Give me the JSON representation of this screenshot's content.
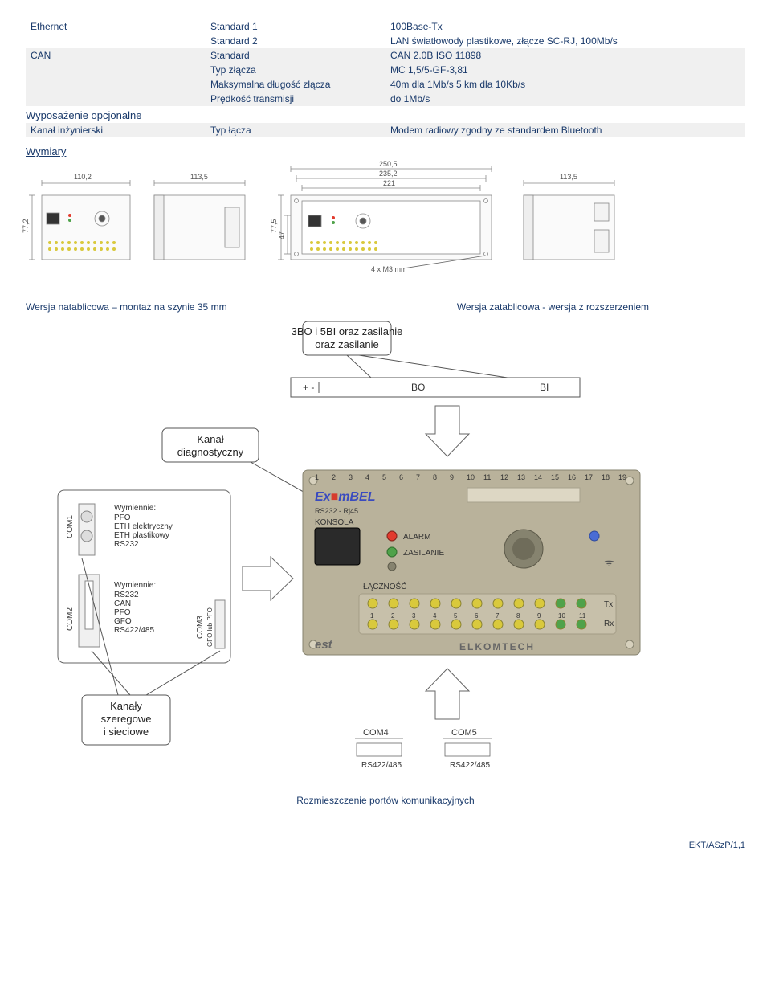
{
  "spec_rows": [
    {
      "grey": false,
      "c1": "Ethernet",
      "c2": "Standard 1",
      "c3": "100Base-Tx"
    },
    {
      "grey": false,
      "c1": "",
      "c2": "Standard 2",
      "c3": "LAN światłowody plastikowe, złącze SC-RJ, 100Mb/s"
    },
    {
      "grey": true,
      "c1": "CAN",
      "c2": "Standard",
      "c3": "CAN 2.0B  ISO 11898"
    },
    {
      "grey": true,
      "c1": "",
      "c2": "Typ złącza",
      "c3": "MC 1,5/5-GF-3,81"
    },
    {
      "grey": true,
      "c1": "",
      "c2": "Maksymalna długość złącza",
      "c3": "40m dla 1Mb/s  5 km dla 10Kb/s"
    },
    {
      "grey": true,
      "c1": "",
      "c2": "Prędkość transmisji",
      "c3": "do 1Mb/s"
    }
  ],
  "section_opt": "Wyposażenie opcjonalne",
  "opt_row": {
    "c1": "Kanał inżynierski",
    "c2": "Typ łącza",
    "c3": "Modem radiowy zgodny ze standardem Bluetooth"
  },
  "section_dim": "Wymiary",
  "dim_labels": {
    "t110": "110,2",
    "t113a": "113,5",
    "t250": "250,5",
    "t235": "235,2",
    "t221": "221",
    "t113b": "113,5",
    "h77a": "77,2",
    "h77b": "77,5",
    "h47": "47",
    "m4": "4 x M3 mm"
  },
  "caption_left": "Wersja natablicowa – montaż na szynie 35 mm",
  "caption_right": "Wersja zatablicowa - wersja z rozszerzeniem",
  "diagram": {
    "box_top": "3BO i 5BI\noraz zasilanie",
    "box_diag": "Kanał\ndiagnostyczny",
    "box_chan": "Kanały\nszeregowe\ni sieciowe",
    "top_bo": "BO",
    "top_bi": "BI",
    "com1": "COM1",
    "com2": "COM2",
    "com3": "COM3",
    "com3s": "GFO lub PFO",
    "com4": "COM4",
    "com5": "COM5",
    "rs422": "RS422/485",
    "wym1_head": "Wymiennie:",
    "wym1_l": [
      "PFO",
      "ETH elektryczny",
      "ETH plastikowy",
      "RS232"
    ],
    "wym2_head": "Wymiennie:",
    "wym2_l": [
      "RS232",
      "CAN",
      "PFO",
      "GFO",
      "RS422/485"
    ],
    "panel_title": "Ex\"mBEL",
    "panel_sub": "RS232 - Rj45",
    "panel_k": "KONSOLA",
    "panel_alarm": "ALARM",
    "panel_zas": "ZASILANIE",
    "panel_lacz": "ŁĄCZNOŚĆ",
    "panel_tx": "Tx",
    "panel_rx": "Rx",
    "est": "est",
    "elkom": "ELKOMTECH"
  },
  "diagram_caption": "Rozmieszczenie portów komunikacyjnych",
  "footer": "EKT/ASzP/1,1",
  "colors": {
    "panel_bg": "#b9b29b",
    "panel_dark": "#86836f",
    "led_red": "#e23b2e",
    "led_green": "#4fa24a",
    "led_yellow": "#d9c93c",
    "led_blue": "#4a6cd4",
    "box_stroke": "#666",
    "dim_stroke": "#888"
  }
}
